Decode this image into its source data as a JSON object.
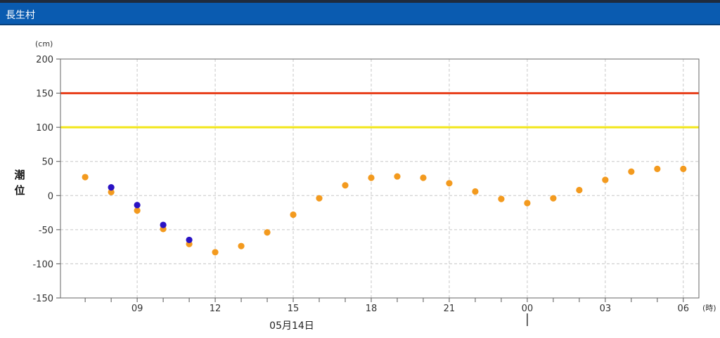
{
  "title": "長生村",
  "colors": {
    "header_bg": "#0a5bb0",
    "observed": "#2a12c4",
    "predicted": "#f39a1e",
    "warning_line": "#e8401c",
    "caution_line": "#f2e619",
    "grid": "#c8c8c8"
  },
  "chart_data": {
    "type": "scatter",
    "title": "",
    "ylabel_chars": [
      "潮",
      "位"
    ],
    "y_unit": "(cm)",
    "x_unit": "(時)",
    "date_label": "05月14日",
    "ylim": [
      -150,
      200
    ],
    "y_ticks": [
      200,
      150,
      100,
      50,
      0,
      -50,
      -100,
      -150
    ],
    "x_range_hours": [
      6.05,
      30.6
    ],
    "x_ticks": [
      {
        "hour": 9,
        "label": "09"
      },
      {
        "hour": 12,
        "label": "12"
      },
      {
        "hour": 15,
        "label": "15"
      },
      {
        "hour": 18,
        "label": "18"
      },
      {
        "hour": 21,
        "label": "21"
      },
      {
        "hour": 24,
        "label": "00"
      },
      {
        "hour": 27,
        "label": "03"
      },
      {
        "hour": 30,
        "label": "06"
      }
    ],
    "date_marker_hour": 24,
    "grid": true,
    "reference_lines": [
      {
        "y": 150,
        "color": "#e8401c"
      },
      {
        "y": 100,
        "color": "#f2e619"
      }
    ],
    "series": [
      {
        "color": "#f39a1e",
        "points": [
          {
            "x": 7,
            "y": 27
          },
          {
            "x": 8,
            "y": 5
          },
          {
            "x": 9,
            "y": -22
          },
          {
            "x": 10,
            "y": -49
          },
          {
            "x": 11,
            "y": -71
          },
          {
            "x": 12,
            "y": -83
          },
          {
            "x": 13,
            "y": -74
          },
          {
            "x": 14,
            "y": -54
          },
          {
            "x": 15,
            "y": -28
          },
          {
            "x": 16,
            "y": -4
          },
          {
            "x": 17,
            "y": 15
          },
          {
            "x": 18,
            "y": 26
          },
          {
            "x": 19,
            "y": 28
          },
          {
            "x": 20,
            "y": 26
          },
          {
            "x": 21,
            "y": 18
          },
          {
            "x": 22,
            "y": 6
          },
          {
            "x": 23,
            "y": -5
          },
          {
            "x": 24,
            "y": -11
          },
          {
            "x": 25,
            "y": -4
          },
          {
            "x": 26,
            "y": 8
          },
          {
            "x": 27,
            "y": 23
          },
          {
            "x": 28,
            "y": 35
          },
          {
            "x": 29,
            "y": 39
          },
          {
            "x": 30,
            "y": 39
          }
        ]
      },
      {
        "color": "#2a12c4",
        "points": [
          {
            "x": 8,
            "y": 12
          },
          {
            "x": 9,
            "y": -14
          },
          {
            "x": 10,
            "y": -43
          },
          {
            "x": 11,
            "y": -65
          }
        ]
      }
    ]
  }
}
